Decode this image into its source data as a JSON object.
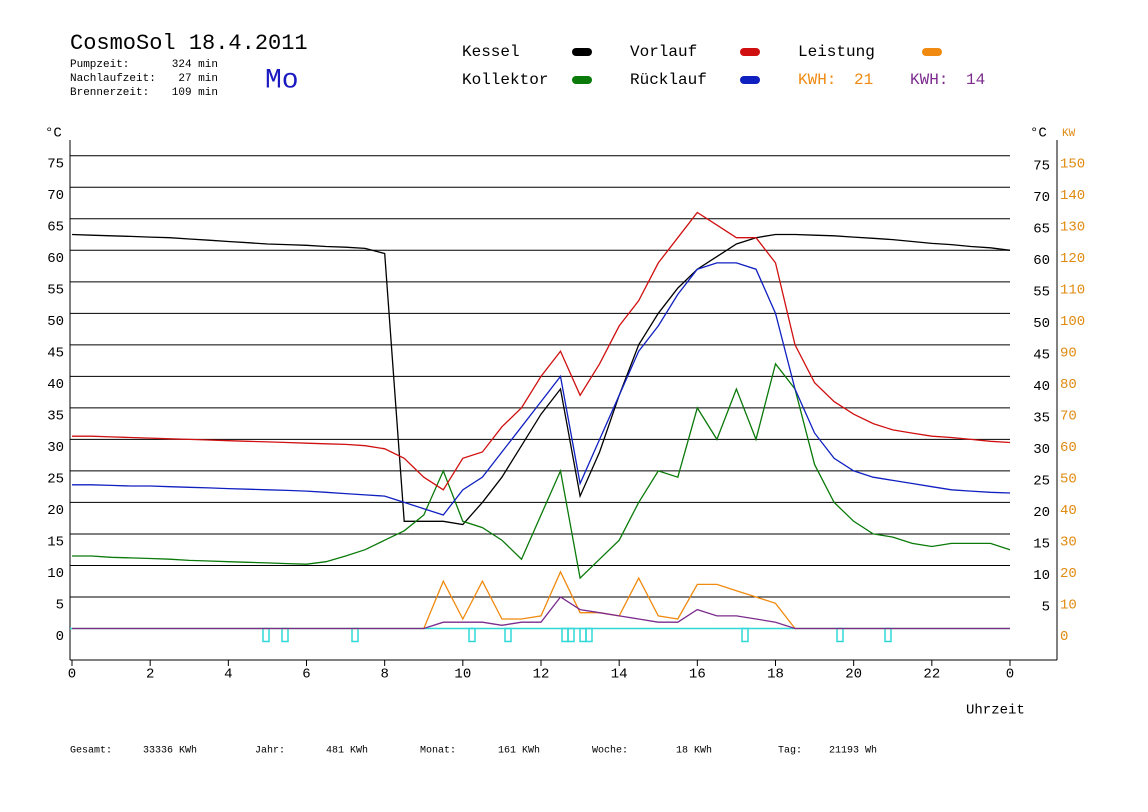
{
  "chart_data": {
    "type": "line",
    "title": "CosmoSol 18.4.2011",
    "weekday": "Mo",
    "info": [
      [
        "Pumpzeit:",
        "324 min"
      ],
      [
        "Nachlaufzeit:",
        "27 min"
      ],
      [
        "Brennerzeit:",
        "109 min"
      ]
    ],
    "y_label": "°C",
    "y2_label_c": "°C",
    "y2_label": "KW",
    "x_label": "Uhrzeit",
    "footer": [
      [
        "Gesamt:",
        "33336 KWh"
      ],
      [
        "Jahr:",
        "481 KWh"
      ],
      [
        "Monat:",
        "161 KWh"
      ],
      [
        "Woche:",
        "18 KWh"
      ],
      [
        "Tag:",
        "21193 Wh"
      ]
    ],
    "x": [
      0,
      0.5,
      1,
      1.5,
      2,
      2.5,
      3,
      3.5,
      4,
      4.5,
      5,
      5.5,
      6,
      6.5,
      7,
      7.5,
      8,
      8.5,
      9,
      9.5,
      10,
      10.5,
      11,
      11.5,
      12,
      12.5,
      13,
      13.5,
      14,
      14.5,
      15,
      15.5,
      16,
      16.5,
      17,
      17.5,
      18,
      18.5,
      19,
      19.5,
      20,
      20.5,
      21,
      21.5,
      22,
      22.5,
      23,
      23.5,
      24
    ],
    "xlim": [
      0,
      24
    ],
    "xticks": [
      0,
      2,
      4,
      6,
      8,
      10,
      12,
      14,
      16,
      18,
      20,
      22,
      {
        "value": 24,
        "label": "0"
      }
    ],
    "ylim": [
      -5,
      77.5
    ],
    "yticks": [
      0,
      5,
      10,
      15,
      20,
      25,
      30,
      35,
      40,
      45,
      50,
      55,
      60,
      65,
      70,
      75
    ],
    "y2ticks_c": [
      5,
      10,
      15,
      20,
      25,
      30,
      35,
      40,
      45,
      50,
      55,
      60,
      65,
      70,
      75
    ],
    "y2lim": [
      -10,
      155
    ],
    "y2ticks": [
      0,
      10,
      20,
      30,
      40,
      50,
      60,
      70,
      80,
      90,
      100,
      110,
      120,
      130,
      140,
      150
    ],
    "grid": true,
    "series": [
      {
        "name": "Kessel",
        "color": "#000000",
        "values": [
          62.5,
          62.4,
          62.3,
          62.2,
          62.1,
          62,
          61.8,
          61.6,
          61.4,
          61.2,
          61,
          60.9,
          60.8,
          60.6,
          60.5,
          60.3,
          59.5,
          17,
          17,
          17,
          16.5,
          20,
          24,
          29,
          34,
          38,
          21,
          28,
          37,
          45,
          50,
          54,
          57,
          59,
          61,
          62,
          62.5,
          62.5,
          62.4,
          62.3,
          62.1,
          61.9,
          61.7,
          61.4,
          61.1,
          60.9,
          60.6,
          60.4,
          60
        ]
      },
      {
        "name": "Kollektor",
        "color": "#0a7a0a",
        "values": [
          11.5,
          11.5,
          11.3,
          11.2,
          11.1,
          11,
          10.8,
          10.7,
          10.6,
          10.5,
          10.4,
          10.3,
          10.2,
          10.6,
          11.5,
          12.5,
          14,
          15.5,
          18,
          25,
          17,
          16,
          14,
          11,
          18,
          25,
          8,
          11,
          14,
          20,
          25,
          24,
          35,
          30,
          38,
          30,
          42,
          38,
          26,
          20,
          17,
          15,
          14.5,
          13.5,
          13,
          13.5,
          13.5,
          13.5,
          12.5
        ]
      },
      {
        "name": "Vorlauf",
        "color": "#d01010",
        "values": [
          30.5,
          30.5,
          30.4,
          30.3,
          30.2,
          30.1,
          30,
          29.9,
          29.8,
          29.7,
          29.6,
          29.5,
          29.4,
          29.3,
          29.2,
          29,
          28.5,
          27,
          24,
          22,
          27,
          28,
          32,
          35,
          40,
          44,
          37,
          42,
          48,
          52,
          58,
          62,
          66,
          64,
          62,
          62,
          58,
          45,
          39,
          36,
          34,
          32.5,
          31.5,
          31,
          30.5,
          30.3,
          30,
          29.7,
          29.5
        ]
      },
      {
        "name": "Rücklauf",
        "color": "#1020c0",
        "values": [
          22.8,
          22.8,
          22.7,
          22.6,
          22.6,
          22.5,
          22.4,
          22.3,
          22.2,
          22.1,
          22,
          21.9,
          21.8,
          21.6,
          21.4,
          21.2,
          21,
          20,
          19,
          18,
          22,
          24,
          28,
          32,
          36,
          40,
          23,
          30,
          37,
          44,
          48,
          53,
          57,
          58,
          58,
          57,
          50,
          38,
          31,
          27,
          25,
          24,
          23.5,
          23,
          22.5,
          22,
          21.8,
          21.6,
          21.5
        ]
      },
      {
        "name": "Leistung",
        "color": "#f08a10",
        "axis": "y2",
        "kwh_prefix": "KWH:",
        "kwh": 21,
        "values": [
          0,
          0,
          0,
          0,
          0,
          0,
          0,
          0,
          0,
          0,
          0,
          0,
          0,
          0,
          0,
          0,
          0,
          0,
          0,
          15,
          3,
          15,
          3,
          3,
          4,
          18,
          5,
          5,
          4,
          16,
          4,
          3,
          14,
          14,
          12,
          10,
          8,
          0,
          0,
          0,
          0,
          0,
          0,
          0,
          0,
          0,
          0,
          0,
          0
        ]
      },
      {
        "color": "#7b2c8e",
        "axis": "y2",
        "kwh_prefix": "KWH:",
        "kwh": 14,
        "values": [
          0,
          0,
          0,
          0,
          0,
          0,
          0,
          0,
          0,
          0,
          0,
          0,
          0,
          0,
          0,
          0,
          0,
          0,
          0,
          2,
          2,
          2,
          1,
          2,
          2,
          10,
          6,
          5,
          4,
          3,
          2,
          2,
          6,
          4,
          4,
          3,
          2,
          0,
          0,
          0,
          0,
          0,
          0,
          0,
          0,
          0,
          0,
          0,
          0
        ]
      }
    ]
  }
}
